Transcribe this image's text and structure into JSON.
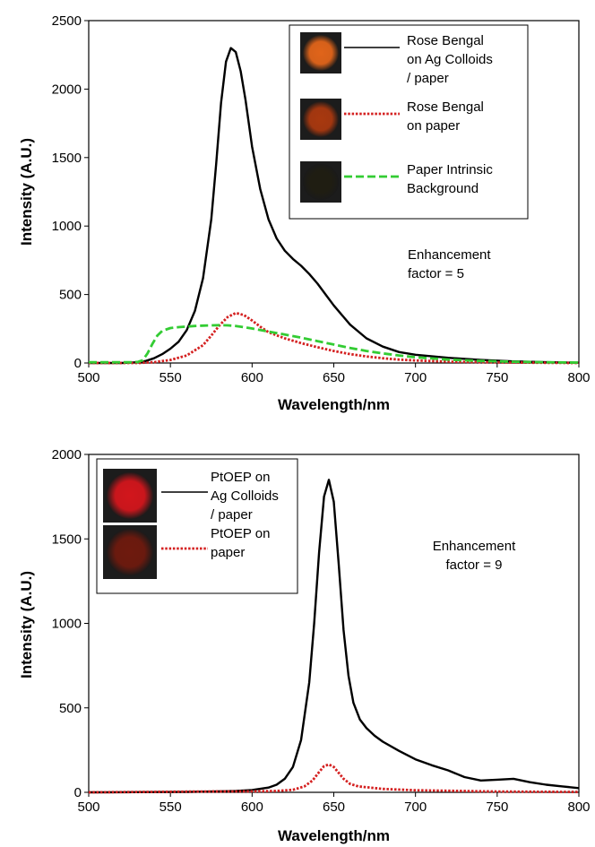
{
  "chart_data": [
    {
      "type": "line",
      "xlabel": "Wavelength/nm",
      "ylabel": "Intensity (A.U.)",
      "xlim": [
        500,
        800
      ],
      "ylim": [
        0,
        2500
      ],
      "xticks": [
        500,
        550,
        600,
        650,
        700,
        750,
        800
      ],
      "yticks": [
        0,
        500,
        1000,
        1500,
        2000,
        2500
      ],
      "grid": false,
      "legend_position": "top-right",
      "series": [
        {
          "name": "Rose Bengal on Ag Colloids / paper",
          "label_lines": [
            "Rose Bengal",
            "on Ag Colloids",
            "/ paper"
          ],
          "style": "solid",
          "color": "#000000",
          "swatch_color": "#e0641a",
          "x": [
            500,
            520,
            530,
            535,
            540,
            545,
            550,
            555,
            560,
            565,
            570,
            575,
            578,
            581,
            584,
            587,
            590,
            593,
            596,
            600,
            605,
            610,
            615,
            620,
            625,
            630,
            635,
            640,
            645,
            650,
            660,
            670,
            680,
            690,
            700,
            720,
            740,
            760,
            780,
            800
          ],
          "y": [
            0,
            0,
            5,
            15,
            35,
            65,
            105,
            155,
            240,
            380,
            620,
            1050,
            1450,
            1900,
            2200,
            2300,
            2270,
            2130,
            1920,
            1580,
            1270,
            1050,
            910,
            820,
            760,
            710,
            650,
            580,
            500,
            420,
            280,
            180,
            120,
            80,
            60,
            38,
            22,
            12,
            6,
            2
          ]
        },
        {
          "name": "Rose Bengal on paper",
          "label_lines": [
            "Rose Bengal",
            "on  paper"
          ],
          "style": "dotted",
          "color": "#d42020",
          "swatch_color": "#a8380f",
          "x": [
            500,
            530,
            540,
            550,
            560,
            570,
            575,
            580,
            585,
            590,
            595,
            600,
            605,
            610,
            620,
            630,
            640,
            650,
            660,
            670,
            680,
            690,
            700,
            720,
            740,
            760,
            780,
            800
          ],
          "y": [
            0,
            0,
            6,
            22,
            55,
            130,
            200,
            275,
            335,
            365,
            350,
            310,
            265,
            225,
            180,
            145,
            115,
            88,
            65,
            48,
            35,
            25,
            18,
            10,
            6,
            3,
            1,
            0
          ]
        },
        {
          "name": "Paper Intrinsic Background",
          "label_lines": [
            "Paper Intrinsic",
            "Background"
          ],
          "style": "dashed",
          "color": "#33cc33",
          "swatch_color": "#1f1d12",
          "x": [
            500,
            525,
            530,
            533,
            536,
            539,
            542,
            545,
            550,
            555,
            560,
            565,
            570,
            575,
            580,
            585,
            590,
            595,
            600,
            610,
            620,
            630,
            640,
            650,
            660,
            670,
            680,
            690,
            700,
            720,
            740,
            760,
            780,
            800
          ],
          "y": [
            5,
            5,
            8,
            20,
            70,
            140,
            200,
            235,
            255,
            262,
            266,
            270,
            273,
            275,
            276,
            275,
            270,
            262,
            252,
            230,
            208,
            185,
            160,
            135,
            110,
            88,
            70,
            55,
            42,
            25,
            15,
            9,
            5,
            3
          ]
        }
      ],
      "annotations": [
        {
          "text_lines": [
            "Enhancement",
            "factor = 5"
          ]
        }
      ]
    },
    {
      "type": "line",
      "xlabel": "Wavelength/nm",
      "ylabel": "Intensity (A.U.)",
      "xlim": [
        500,
        800
      ],
      "ylim": [
        0,
        2000
      ],
      "xticks": [
        500,
        550,
        600,
        650,
        700,
        750,
        800
      ],
      "yticks": [
        0,
        500,
        1000,
        1500,
        2000
      ],
      "grid": false,
      "legend_position": "top-left",
      "series": [
        {
          "name": "PtOEP on Ag Colloids / paper",
          "label_lines": [
            "PtOEP on",
            "Ag Colloids",
            "/ paper"
          ],
          "style": "solid",
          "color": "#000000",
          "swatch_color": "#d2161c",
          "x": [
            500,
            560,
            590,
            600,
            610,
            615,
            620,
            625,
            630,
            635,
            638,
            641,
            644,
            647,
            650,
            653,
            656,
            659,
            662,
            666,
            670,
            675,
            680,
            690,
            700,
            710,
            720,
            730,
            740,
            750,
            760,
            770,
            780,
            790,
            800
          ],
          "y": [
            0,
            2,
            8,
            14,
            28,
            45,
            80,
            150,
            310,
            650,
            1000,
            1420,
            1750,
            1850,
            1720,
            1350,
            960,
            690,
            530,
            430,
            380,
            335,
            300,
            245,
            195,
            160,
            130,
            90,
            70,
            75,
            80,
            60,
            45,
            35,
            25
          ]
        },
        {
          "name": "PtOEP on paper",
          "label_lines": [
            "PtOEP on",
            "paper"
          ],
          "style": "dotted",
          "color": "#d42020",
          "swatch_color": "#6e1a0e",
          "x": [
            500,
            560,
            600,
            615,
            625,
            632,
            637,
            641,
            644,
            647,
            650,
            653,
            656,
            660,
            665,
            670,
            680,
            700,
            750,
            800
          ],
          "y": [
            0,
            4,
            6,
            8,
            15,
            35,
            70,
            120,
            155,
            165,
            150,
            115,
            80,
            50,
            35,
            30,
            20,
            12,
            5,
            2
          ]
        }
      ],
      "annotations": [
        {
          "text_lines": [
            "Enhancement",
            "factor = 9"
          ]
        }
      ]
    }
  ]
}
